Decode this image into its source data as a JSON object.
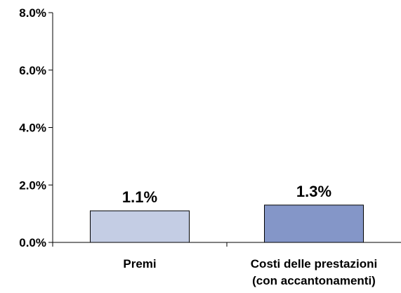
{
  "chart_data": {
    "type": "bar",
    "categories": [
      "Premi",
      "Costi delle prestazioni (con accantonamenti)"
    ],
    "category_lines": [
      [
        "Premi"
      ],
      [
        "Costi delle prestazioni",
        "(con accantonamenti)"
      ]
    ],
    "values": [
      1.1,
      1.3
    ],
    "data_labels": [
      "1.1%",
      "1.3%"
    ],
    "bar_colors": [
      "#c4cde4",
      "#8496c8"
    ],
    "bar_stroke": "#000000",
    "yticks": [
      0,
      2,
      4,
      6,
      8
    ],
    "ytick_labels": [
      "0.0%",
      "2.0%",
      "4.0%",
      "6.0%",
      "8.0%"
    ],
    "ylim": [
      0,
      8
    ],
    "grid": false,
    "legend": "none"
  }
}
